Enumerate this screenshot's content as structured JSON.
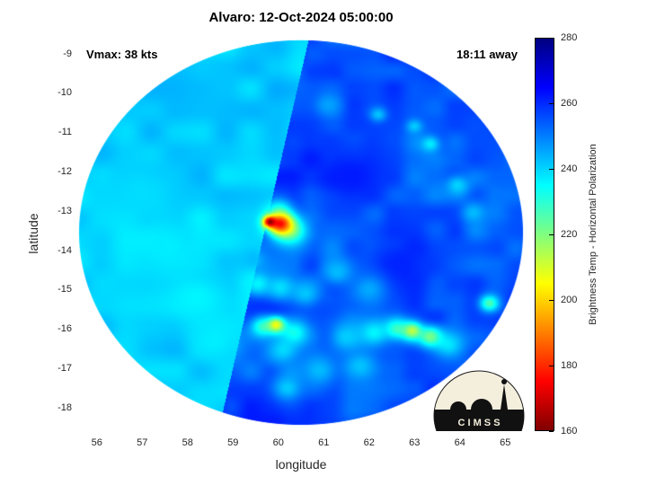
{
  "logo": {
    "text": "C I M S S"
  },
  "chart_data": {
    "type": "heatmap",
    "title": "Alvaro: 12-Oct-2024 05:00:00",
    "xlabel": "longitude",
    "ylabel": "latitude",
    "xlim": [
      55.55,
      65.45
    ],
    "ylim": [
      -18.6,
      -8.55
    ],
    "xticks": [
      56,
      57,
      58,
      59,
      60,
      61,
      62,
      63,
      64,
      65
    ],
    "yticks": [
      -9,
      -10,
      -11,
      -12,
      -13,
      -14,
      -15,
      -16,
      -17,
      -18
    ],
    "annotations": {
      "vmax": "Vmax: 38 kts",
      "eta": "18:11 away"
    },
    "colorbar": {
      "label": "Brightness Temp - Horizontal Polarization",
      "min": 160,
      "max": 280,
      "ticks": [
        280,
        260,
        240,
        220,
        200,
        180,
        160
      ],
      "stops": [
        {
          "pos": 0,
          "color": "#000080"
        },
        {
          "pos": 12.5,
          "color": "#0000ff"
        },
        {
          "pos": 37.5,
          "color": "#00ffff"
        },
        {
          "pos": 62.5,
          "color": "#ffff00"
        },
        {
          "pos": 87.5,
          "color": "#ff0000"
        },
        {
          "pos": 100,
          "color": "#800000"
        }
      ]
    },
    "swath": {
      "center": {
        "lon": 60.5,
        "lat": -13.55
      },
      "radius_deg": 4.9,
      "seam": {
        "lon_ref": 60.5,
        "lat_ref": -9.5,
        "slope_lon_per_lat": 0.2
      },
      "left": {
        "base_K": 240.5,
        "noise": [
          {
            "scale_deg": 0.55,
            "amp_K": 3.2,
            "seed": 7
          },
          {
            "scale_deg": 1.5,
            "amp_K": 2.2,
            "seed": 11
          }
        ]
      },
      "right": {
        "base_K": 256.5,
        "noise": [
          {
            "scale_deg": 0.45,
            "amp_K": 4.5,
            "seed": 3
          },
          {
            "scale_deg": 1.4,
            "amp_K": 4.0,
            "seed": 5
          }
        ]
      }
    },
    "features": [
      {
        "lon": 60.05,
        "lat": -13.33,
        "sigma_deg": 0.2,
        "temp_K": 176
      },
      {
        "lon": 59.82,
        "lat": -13.28,
        "sigma_deg": 0.1,
        "temp_K": 161
      },
      {
        "lon": 60.28,
        "lat": -13.52,
        "sigma_deg": 0.26,
        "temp_K": 226
      },
      {
        "lon": 60.0,
        "lat": -12.98,
        "sigma_deg": 0.22,
        "temp_K": 236
      },
      {
        "lon": 59.55,
        "lat": -14.85,
        "sigma_deg": 0.22,
        "temp_K": 236
      },
      {
        "lon": 60.05,
        "lat": -14.95,
        "sigma_deg": 0.26,
        "temp_K": 239
      },
      {
        "lon": 60.6,
        "lat": -15.1,
        "sigma_deg": 0.26,
        "temp_K": 242
      },
      {
        "lon": 59.45,
        "lat": -14.25,
        "sigma_deg": 0.18,
        "temp_K": 243
      },
      {
        "lon": 59.95,
        "lat": -15.9,
        "sigma_deg": 0.14,
        "temp_K": 206
      },
      {
        "lon": 59.65,
        "lat": -15.95,
        "sigma_deg": 0.2,
        "temp_K": 230
      },
      {
        "lon": 60.35,
        "lat": -16.1,
        "sigma_deg": 0.24,
        "temp_K": 233
      },
      {
        "lon": 60.1,
        "lat": -16.55,
        "sigma_deg": 0.24,
        "temp_K": 240
      },
      {
        "lon": 61.5,
        "lat": -16.2,
        "sigma_deg": 0.3,
        "temp_K": 241
      },
      {
        "lon": 62.1,
        "lat": -16.1,
        "sigma_deg": 0.24,
        "temp_K": 236
      },
      {
        "lon": 62.6,
        "lat": -16.0,
        "sigma_deg": 0.2,
        "temp_K": 229
      },
      {
        "lon": 62.95,
        "lat": -16.05,
        "sigma_deg": 0.16,
        "temp_K": 213
      },
      {
        "lon": 63.35,
        "lat": -16.2,
        "sigma_deg": 0.18,
        "temp_K": 221
      },
      {
        "lon": 63.75,
        "lat": -16.4,
        "sigma_deg": 0.24,
        "temp_K": 238
      },
      {
        "lon": 64.65,
        "lat": -15.35,
        "sigma_deg": 0.15,
        "temp_K": 226
      },
      {
        "lon": 60.9,
        "lat": -17.05,
        "sigma_deg": 0.3,
        "temp_K": 243
      },
      {
        "lon": 61.8,
        "lat": -16.95,
        "sigma_deg": 0.28,
        "temp_K": 242
      },
      {
        "lon": 60.2,
        "lat": -17.5,
        "sigma_deg": 0.24,
        "temp_K": 241
      },
      {
        "lon": 63.35,
        "lat": -11.3,
        "sigma_deg": 0.16,
        "temp_K": 237
      },
      {
        "lon": 63.0,
        "lat": -10.85,
        "sigma_deg": 0.13,
        "temp_K": 241
      },
      {
        "lon": 63.95,
        "lat": -12.35,
        "sigma_deg": 0.18,
        "temp_K": 240
      },
      {
        "lon": 62.2,
        "lat": -10.55,
        "sigma_deg": 0.13,
        "temp_K": 242
      },
      {
        "lon": 64.3,
        "lat": -13.05,
        "sigma_deg": 0.18,
        "temp_K": 243
      },
      {
        "lon": 61.1,
        "lat": -10.3,
        "sigma_deg": 0.2,
        "temp_K": 246
      },
      {
        "lon": 58.2,
        "lat": -15.2,
        "sigma_deg": 0.5,
        "temp_K": 236
      },
      {
        "lon": 57.6,
        "lat": -13.9,
        "sigma_deg": 0.45,
        "temp_K": 237
      },
      {
        "lon": 58.6,
        "lat": -16.3,
        "sigma_deg": 0.4,
        "temp_K": 237
      },
      {
        "lon": 57.0,
        "lat": -12.5,
        "sigma_deg": 0.5,
        "temp_K": 239
      },
      {
        "lon": 61.3,
        "lat": -14.55,
        "sigma_deg": 0.24,
        "temp_K": 243
      },
      {
        "lon": 62.0,
        "lat": -15.0,
        "sigma_deg": 0.28,
        "temp_K": 245
      },
      {
        "lon": 61.6,
        "lat": -12.1,
        "sigma_deg": 0.55,
        "temp_K": 262
      },
      {
        "lon": 62.7,
        "lat": -14.4,
        "sigma_deg": 0.6,
        "temp_K": 261
      }
    ]
  }
}
